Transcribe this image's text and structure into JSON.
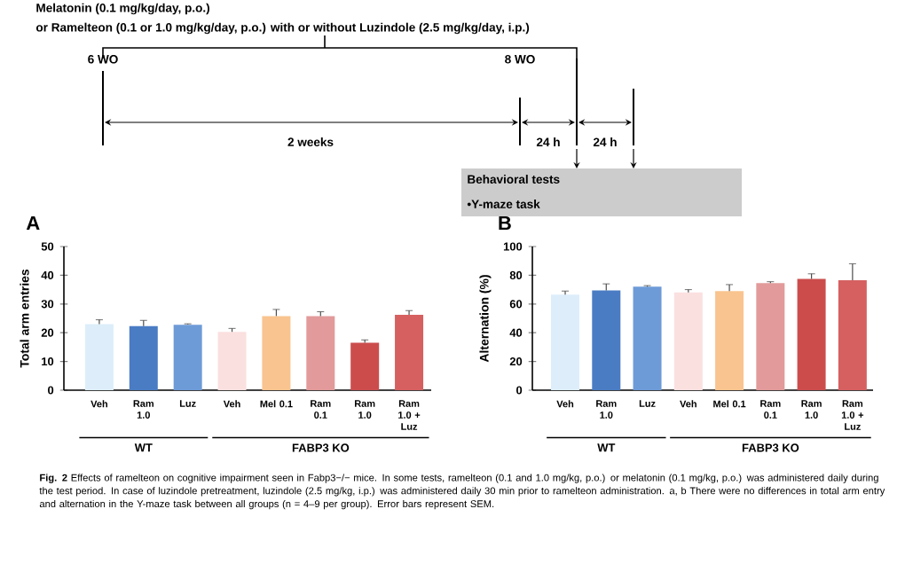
{
  "chart_data": [
    {
      "type": "bar",
      "title": "A",
      "ylabel": "Total arm entries",
      "categories": [
        "Veh",
        "Ram 1.0",
        "Luz",
        "Veh",
        "Mel 0.1",
        "Ram 0.1",
        "Ram 1.0",
        "Ram 1.0 + Luz"
      ],
      "values": [
        23,
        22.3,
        22.8,
        20.3,
        25.8,
        25.8,
        16.5,
        26.2
      ],
      "errors": [
        1.5,
        2,
        0.3,
        1.2,
        2.3,
        1.5,
        1,
        1.5
      ],
      "colors": [
        "#ddeefa",
        "#4a7cc4",
        "#6d9bd8",
        "#fbe0e0",
        "#f9c48f",
        "#e29a9a",
        "#cc4c4c",
        "#d66060"
      ],
      "ylim": [
        0,
        50
      ],
      "yticks": [
        0,
        10,
        20,
        30,
        40,
        50
      ],
      "annotations": [
        "Melatonin (0.1 mg/kg/day, p.o.)",
        "or Ramelteon (0.1 or 1.0 mg/kg/day, p.o.) with or without Luzindole (2.5 mg/kg/day, i.p.)",
        "6 WO",
        "8 WO",
        "2 weeks",
        "24 h",
        "24 h",
        "Behavioral tests",
        "•Y-maze task",
        "WT",
        "FABP3 KO"
      ]
    },
    {
      "type": "bar",
      "title": "B",
      "ylabel": "Alternation (%)",
      "categories": [
        "Veh",
        "Ram 1.0",
        "Luz",
        "Veh",
        "Mel 0.1",
        "Ram 0.1",
        "Ram 1.0",
        "Ram 1.0 + Luz"
      ],
      "values": [
        66.5,
        69.5,
        72,
        68,
        69,
        74.5,
        77.5,
        76.5
      ],
      "errors": [
        2.5,
        4.5,
        0.8,
        2,
        4.5,
        1,
        3.5,
        11.5
      ],
      "colors": [
        "#ddeefa",
        "#4a7cc4",
        "#6d9bd8",
        "#fbe0e0",
        "#f9c48f",
        "#e29a9a",
        "#cc4c4c",
        "#d66060"
      ],
      "ylim": [
        0,
        100
      ],
      "yticks": [
        0,
        20,
        40,
        60,
        80,
        100
      ],
      "annotations": [
        "WT",
        "FABP3 KO",
        "**Fig. 2** Effects of ramelteon on cognitive impairment seen in Fabp3−/− mice. In some tests, ramelteon (0.1 and 1.0 mg/kg, p.o.) or melatonin (0.1 mg/kg, p.o.) was administered daily during the test period. In case of luzindole pretreatment, luzindole (2.5 mg/kg, i.p.) was administered daily 30 min prior to ramelteon administration. a, b There were no differences in total arm entry and alternation in the Y-maze task between all groups (n = 4–9 per group). Error bars represent SEM."
      ]
    }
  ]
}
